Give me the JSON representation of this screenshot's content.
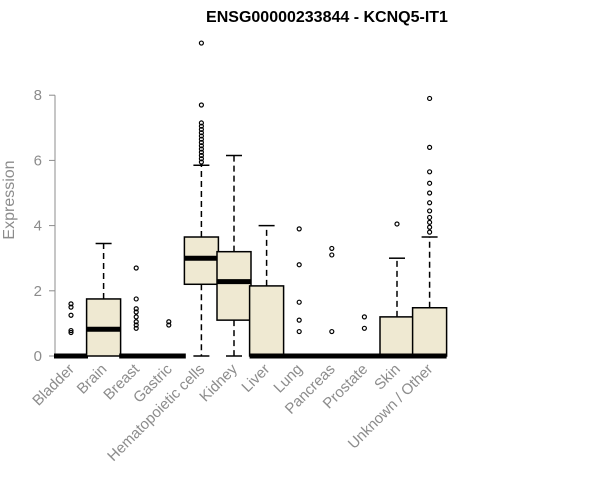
{
  "chart_data": {
    "type": "box",
    "title": "ENSG00000233844 - KCNQ5-IT1",
    "ylabel": "Expression",
    "xlabel": "",
    "ylim": [
      0,
      9.7
    ],
    "yticks": [
      0,
      2,
      4,
      6,
      8
    ],
    "box_fill": "#efe9d2",
    "categories": [
      "Bladder",
      "Brain",
      "Breast",
      "Gastric",
      "Hematopoietic cells",
      "Kidney",
      "Liver",
      "Lung",
      "Pancreas",
      "Prostate",
      "Skin",
      "Unknown / Other"
    ],
    "boxes": [
      {
        "whisker_low": 0,
        "q1": 0,
        "median": 0,
        "q3": 0,
        "whisker_high": 0,
        "outliers": [
          0.72,
          0.78,
          1.25,
          1.5,
          1.6
        ]
      },
      {
        "whisker_low": 0,
        "q1": 0,
        "median": 0.82,
        "q3": 1.75,
        "whisker_high": 3.45,
        "outliers": []
      },
      {
        "whisker_low": 0,
        "q1": 0,
        "median": 0,
        "q3": 0,
        "whisker_high": 0,
        "outliers": [
          0.85,
          0.95,
          1.05,
          1.2,
          1.35,
          1.45,
          1.75,
          2.7
        ]
      },
      {
        "whisker_low": 0,
        "q1": 0,
        "median": 0,
        "q3": 0,
        "whisker_high": 0,
        "outliers": [
          0.95,
          1.05
        ]
      },
      {
        "whisker_low": 0,
        "q1": 2.2,
        "median": 3.0,
        "q3": 3.65,
        "whisker_high": 5.85,
        "outliers": [
          5.95,
          6.05,
          6.15,
          6.25,
          6.35,
          6.45,
          6.55,
          6.65,
          6.75,
          6.85,
          6.95,
          7.05,
          7.15,
          7.7,
          9.6
        ]
      },
      {
        "whisker_low": 0,
        "q1": 1.1,
        "median": 2.28,
        "q3": 3.2,
        "whisker_high": 6.15,
        "outliers": []
      },
      {
        "whisker_low": 0,
        "q1": 0,
        "median": 0,
        "q3": 2.15,
        "whisker_high": 4.0,
        "outliers": []
      },
      {
        "whisker_low": 0,
        "q1": 0,
        "median": 0,
        "q3": 0,
        "whisker_high": 0,
        "outliers": [
          0.75,
          1.1,
          1.65,
          2.8,
          3.9
        ]
      },
      {
        "whisker_low": 0,
        "q1": 0,
        "median": 0,
        "q3": 0,
        "whisker_high": 0,
        "outliers": [
          0.75,
          3.1,
          3.3
        ]
      },
      {
        "whisker_low": 0,
        "q1": 0,
        "median": 0,
        "q3": 0,
        "whisker_high": 0,
        "outliers": [
          0.85,
          1.2
        ]
      },
      {
        "whisker_low": 0,
        "q1": 0,
        "median": 0,
        "q3": 1.2,
        "whisker_high": 3.0,
        "outliers": [
          4.05
        ]
      },
      {
        "whisker_low": 0,
        "q1": 0,
        "median": 0,
        "q3": 1.48,
        "whisker_high": 3.65,
        "outliers": [
          3.8,
          3.95,
          4.1,
          4.25,
          4.45,
          4.7,
          5.0,
          5.3,
          5.65,
          6.4,
          7.9
        ]
      }
    ]
  }
}
